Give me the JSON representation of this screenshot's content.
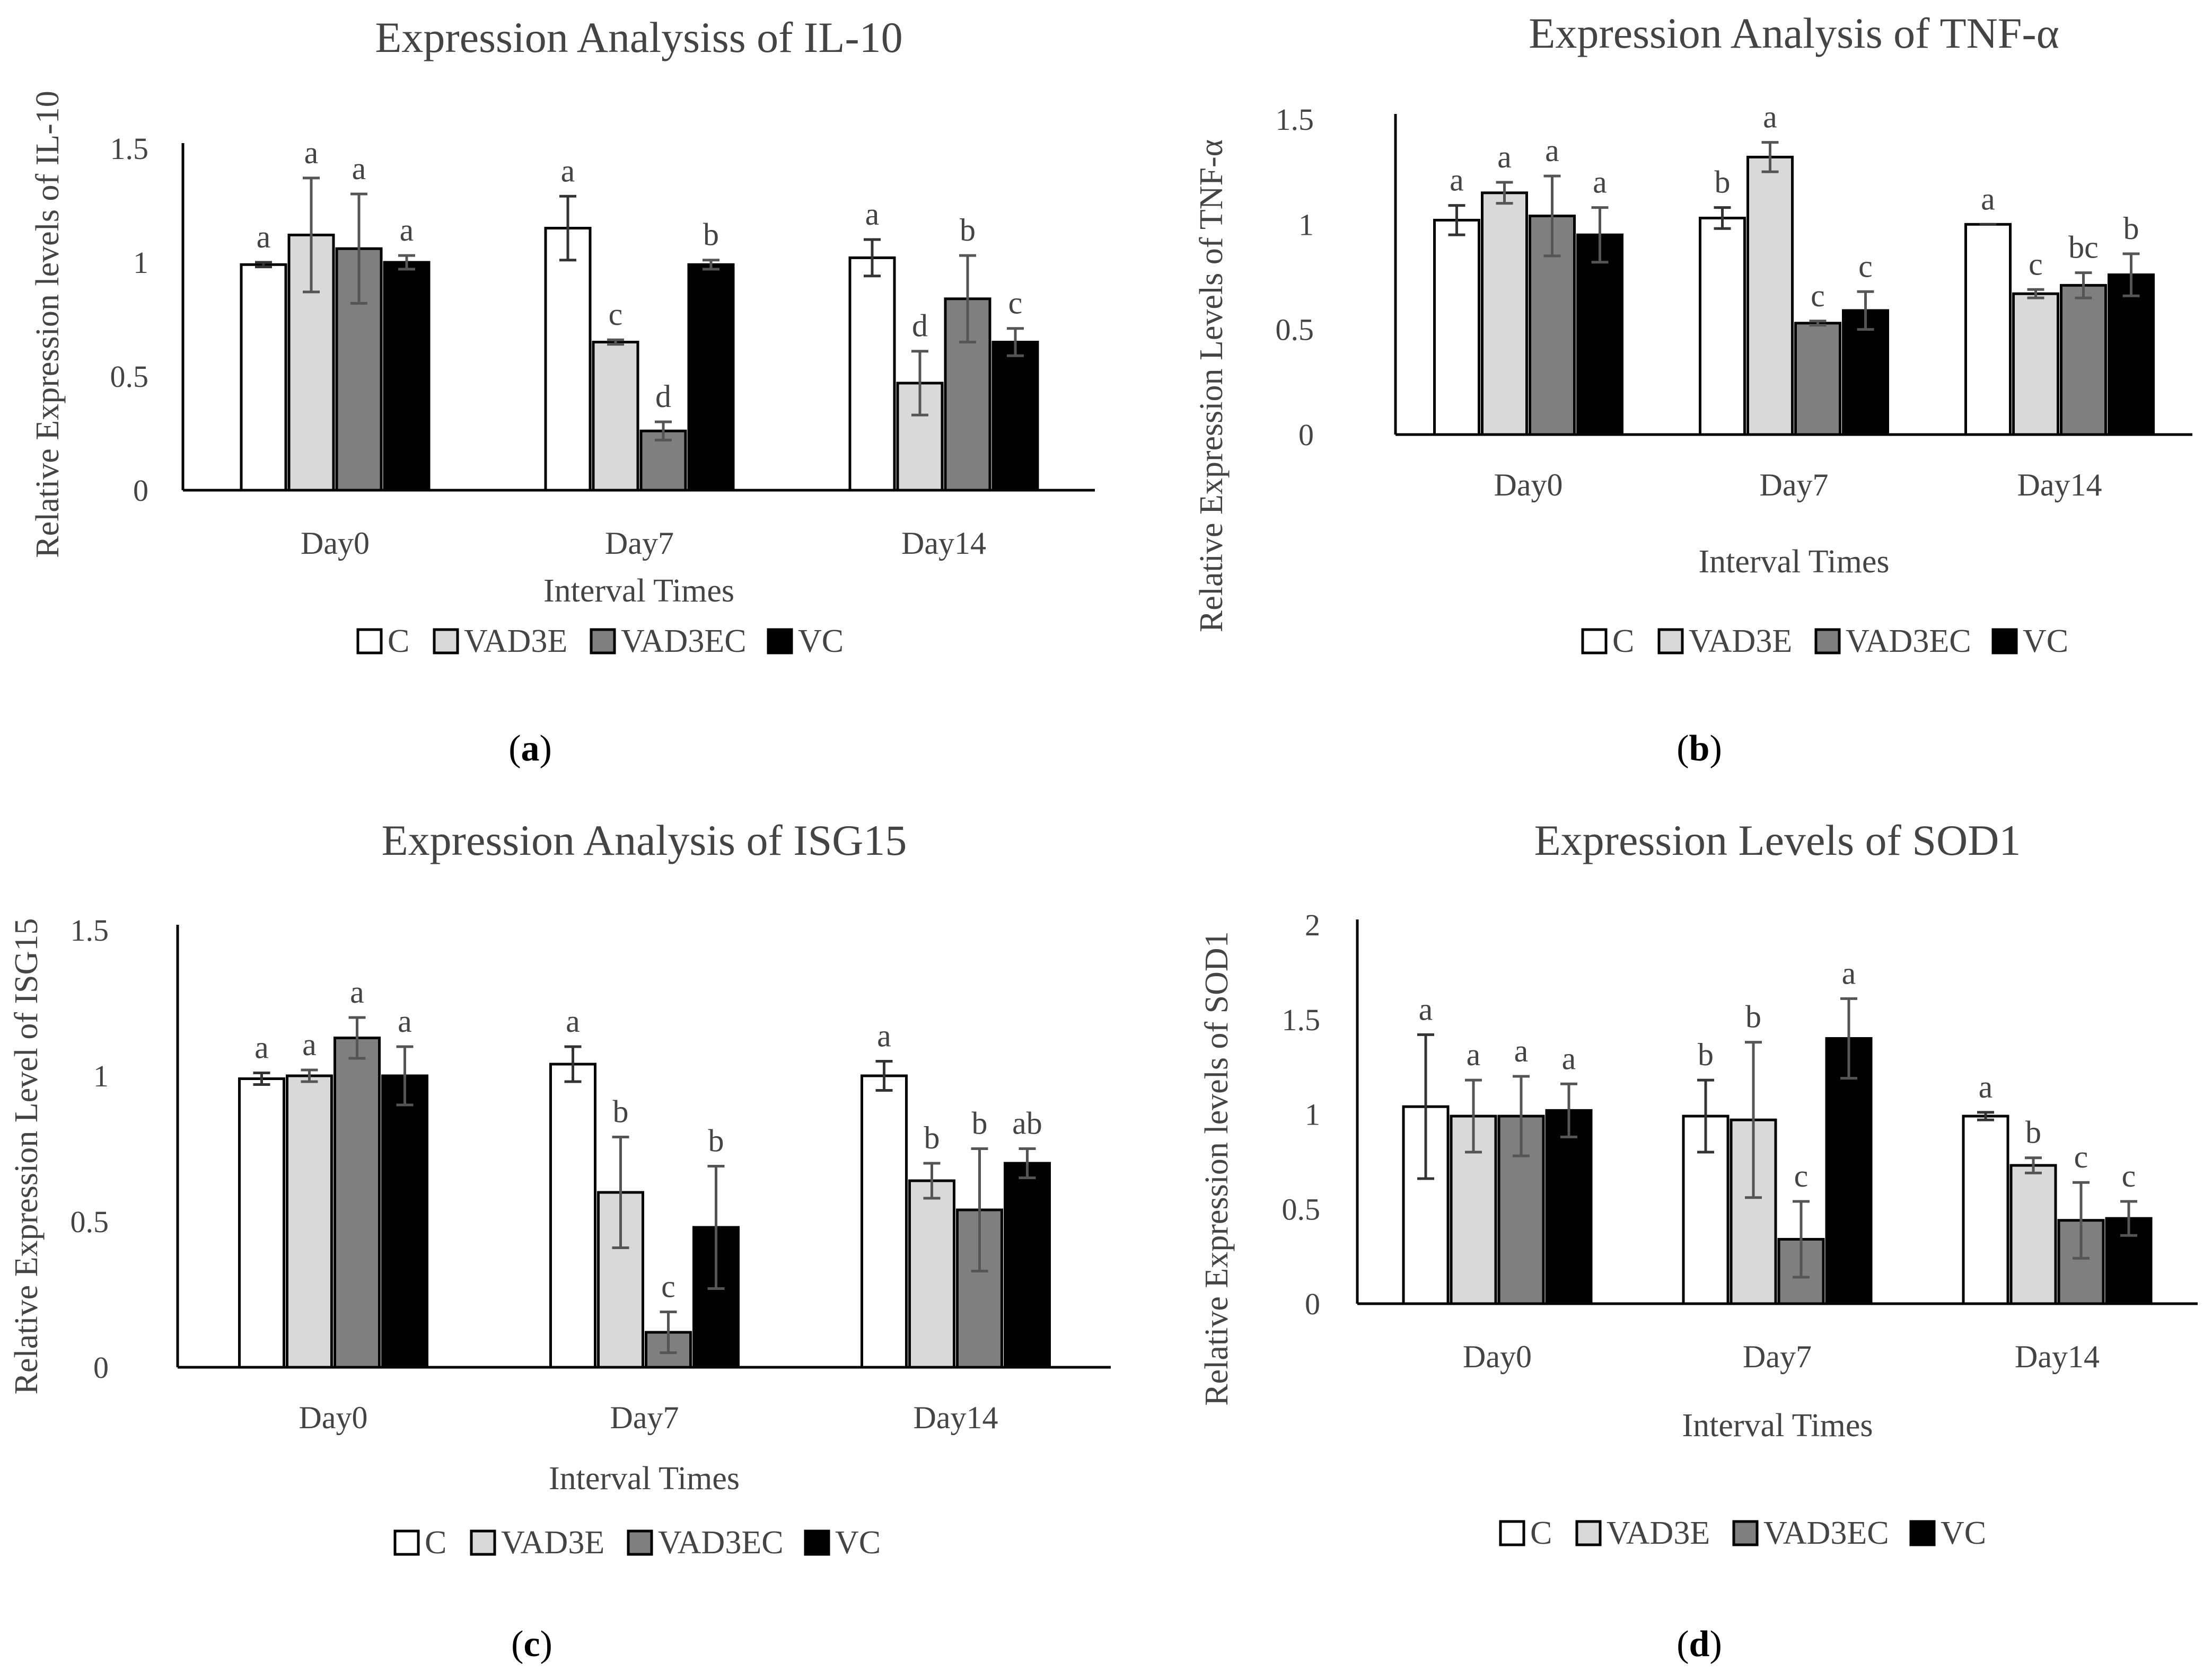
{
  "legend": [
    {
      "label": "C",
      "color": "#ffffff"
    },
    {
      "label": "VAD3E",
      "color": "#d9d9d9"
    },
    {
      "label": "VAD3EC",
      "color": "#7f7f7f"
    },
    {
      "label": "VC",
      "color": "#000000"
    }
  ],
  "chart_data": [
    {
      "panel": "(a)",
      "panel_letter": "a",
      "type": "bar",
      "title": "Expression Analysiss of IL-10",
      "xlabel": "Interval Times",
      "ylabel": "Relative Expression levels of IL-10",
      "categories": [
        "Day0",
        "Day7",
        "Day14"
      ],
      "ylim": [
        0,
        1.5
      ],
      "yticks": [
        "0",
        "0.5",
        "1",
        "1.5"
      ],
      "grid": false,
      "legend_position": "bottom",
      "series": [
        {
          "name": "C",
          "values": [
            0.99,
            1.15,
            1.02
          ],
          "errors": [
            0.01,
            0.14,
            0.08
          ],
          "labels": [
            "a",
            "a",
            "a"
          ]
        },
        {
          "name": "VAD3E",
          "values": [
            1.12,
            0.65,
            0.47
          ],
          "errors": [
            0.25,
            0.01,
            0.14
          ],
          "labels": [
            "a",
            "c",
            "d"
          ]
        },
        {
          "name": "VAD3EC",
          "values": [
            1.06,
            0.26,
            0.84
          ],
          "errors": [
            0.24,
            0.04,
            0.19
          ],
          "labels": [
            "a",
            "d",
            "b"
          ]
        },
        {
          "name": "VC",
          "values": [
            1.0,
            0.99,
            0.65
          ],
          "errors": [
            0.03,
            0.02,
            0.06
          ],
          "labels": [
            "a",
            "b",
            "c"
          ]
        }
      ]
    },
    {
      "panel": "(b)",
      "panel_letter": "b",
      "type": "bar",
      "title": "Expression Analysis of TNF-α",
      "xlabel": "Interval Times",
      "ylabel": "Relative Expression Levels of TNF-α",
      "categories": [
        "Day0",
        "Day7",
        "Day14"
      ],
      "ylim": [
        0,
        1.5
      ],
      "yticks": [
        "0",
        "0.5",
        "1",
        "1.5"
      ],
      "grid": false,
      "legend_position": "bottom",
      "series": [
        {
          "name": "C",
          "values": [
            1.02,
            1.03,
            1.0
          ],
          "errors": [
            0.07,
            0.05,
            0.0
          ],
          "labels": [
            "a",
            "b",
            "a"
          ]
        },
        {
          "name": "VAD3E",
          "values": [
            1.15,
            1.32,
            0.67
          ],
          "errors": [
            0.05,
            0.07,
            0.02
          ],
          "labels": [
            "a",
            "a",
            "c"
          ]
        },
        {
          "name": "VAD3EC",
          "values": [
            1.04,
            0.53,
            0.71
          ],
          "errors": [
            0.19,
            0.01,
            0.06
          ],
          "labels": [
            "a",
            "c",
            "bc"
          ]
        },
        {
          "name": "VC",
          "values": [
            0.95,
            0.59,
            0.76
          ],
          "errors": [
            0.13,
            0.09,
            0.1
          ],
          "labels": [
            "a",
            "c",
            "b"
          ]
        }
      ]
    },
    {
      "panel": "(c)",
      "panel_letter": "c",
      "type": "bar",
      "title": "Expression Analysis of ISG15",
      "xlabel": "Interval Times",
      "ylabel": "Relative Expression Level of ISG15",
      "categories": [
        "Day0",
        "Day7",
        "Day14"
      ],
      "ylim": [
        0,
        1.5
      ],
      "yticks": [
        "0",
        "0.5",
        "1",
        "1.5"
      ],
      "grid": false,
      "legend_position": "bottom",
      "series": [
        {
          "name": "C",
          "values": [
            0.99,
            1.04,
            1.0
          ],
          "errors": [
            0.02,
            0.06,
            0.05
          ],
          "labels": [
            "a",
            "a",
            "a"
          ]
        },
        {
          "name": "VAD3E",
          "values": [
            1.0,
            0.6,
            0.64
          ],
          "errors": [
            0.02,
            0.19,
            0.06
          ],
          "labels": [
            "a",
            "b",
            "b"
          ]
        },
        {
          "name": "VAD3EC",
          "values": [
            1.13,
            0.12,
            0.54
          ],
          "errors": [
            0.07,
            0.07,
            0.21
          ],
          "labels": [
            "a",
            "c",
            "b"
          ]
        },
        {
          "name": "VC",
          "values": [
            1.0,
            0.48,
            0.7
          ],
          "errors": [
            0.1,
            0.21,
            0.05
          ],
          "labels": [
            "a",
            "b",
            "ab"
          ]
        }
      ]
    },
    {
      "panel": "(d)",
      "panel_letter": "d",
      "type": "bar",
      "title": "Expression Levels of SOD1",
      "xlabel": "Interval Times",
      "ylabel": "Relative Expression levels of  SOD1",
      "categories": [
        "Day0",
        "Day7",
        "Day14"
      ],
      "ylim": [
        0,
        2
      ],
      "yticks": [
        "0",
        "0.5",
        "1",
        "1.5",
        "2"
      ],
      "grid": false,
      "legend_position": "bottom",
      "series": [
        {
          "name": "C",
          "values": [
            1.04,
            0.99,
            0.99
          ],
          "errors": [
            0.38,
            0.19,
            0.02
          ],
          "labels": [
            "a",
            "b",
            "a"
          ]
        },
        {
          "name": "VAD3E",
          "values": [
            0.99,
            0.97,
            0.73
          ],
          "errors": [
            0.19,
            0.41,
            0.04
          ],
          "labels": [
            "a",
            "b",
            "b"
          ]
        },
        {
          "name": "VAD3EC",
          "values": [
            0.99,
            0.34,
            0.44
          ],
          "errors": [
            0.21,
            0.2,
            0.2
          ],
          "labels": [
            "a",
            "c",
            "c"
          ]
        },
        {
          "name": "VC",
          "values": [
            1.02,
            1.4,
            0.45
          ],
          "errors": [
            0.14,
            0.21,
            0.09
          ],
          "labels": [
            "a",
            "a",
            "c"
          ]
        }
      ]
    }
  ]
}
